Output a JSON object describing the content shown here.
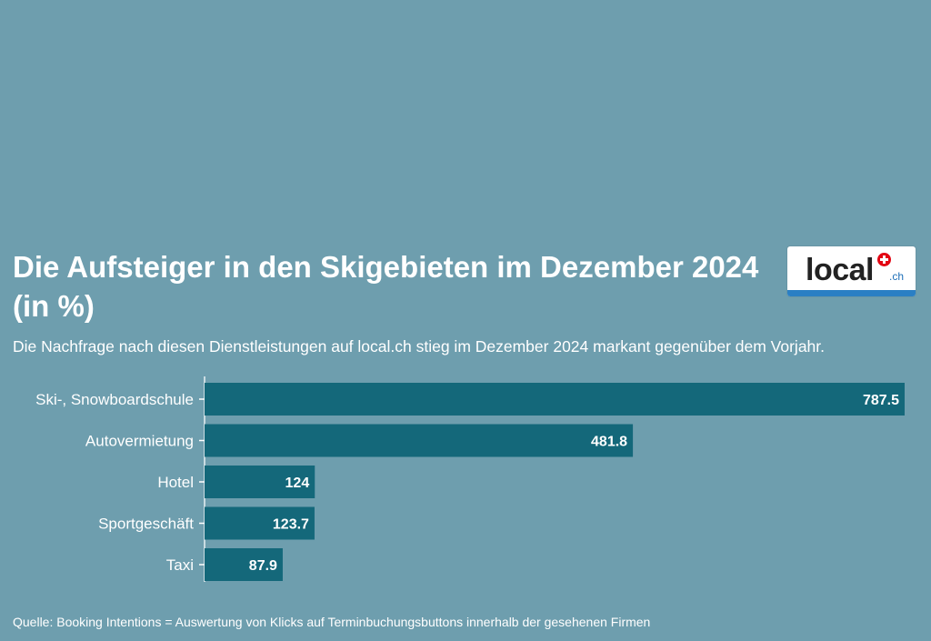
{
  "header": {
    "title": "Die Aufsteiger in den Skigebieten im Dezember 2024 (in %)",
    "subtitle": "Die Nachfrage nach diesen Dienstleistungen auf local.ch stieg im Dezember 2024 markant gegenüber dem Vorjahr."
  },
  "logo": {
    "text": "local",
    "suffix": ".ch",
    "icon": "swiss-cross-icon"
  },
  "footer": {
    "source": "Quelle: Booking Intentions = Auswertung von Klicks auf Terminbuchungsbuttons innerhalb der gesehenen Firmen"
  },
  "colors": {
    "background": "#6e9eae",
    "bar": "#14687a",
    "text": "#ffffff"
  },
  "chart_data": {
    "type": "bar",
    "orientation": "horizontal",
    "title": "Die Aufsteiger in den Skigebieten im Dezember 2024 (in %)",
    "xlabel": "",
    "ylabel": "",
    "categories": [
      "Ski-, Snowboardschule",
      "Autovermietung",
      "Hotel",
      "Sportgeschäft",
      "Taxi"
    ],
    "values": [
      787.5,
      481.8,
      124,
      123.7,
      87.9
    ],
    "value_labels": [
      "787.5",
      "481.8",
      "124",
      "123.7",
      "87.9"
    ],
    "xlim": [
      0,
      787.5
    ],
    "grid": false,
    "legend": "none"
  }
}
